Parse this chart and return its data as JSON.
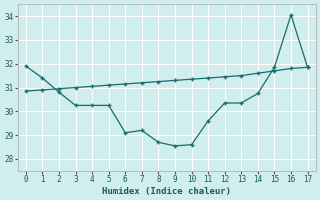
{
  "title": "",
  "xlabel": "Humidex (Indice chaleur)",
  "ylabel": "",
  "background_color": "#cfeeed",
  "grid_color": "#b8dede",
  "line_color": "#1a6b6b",
  "marker_color": "#1a6b6b",
  "xlim": [
    -0.5,
    17.5
  ],
  "ylim": [
    27.5,
    34.5
  ],
  "yticks": [
    28,
    29,
    30,
    31,
    32,
    33,
    34
  ],
  "xticks": [
    0,
    1,
    2,
    3,
    4,
    5,
    6,
    7,
    8,
    9,
    10,
    11,
    12,
    13,
    14,
    15,
    16,
    17
  ],
  "jagged_x": [
    0,
    1,
    2,
    3,
    4,
    5,
    6,
    7,
    8,
    9,
    10,
    11,
    12,
    13,
    14,
    15,
    16,
    17
  ],
  "jagged_y": [
    31.9,
    31.4,
    30.8,
    30.25,
    30.25,
    30.25,
    29.1,
    29.2,
    28.7,
    28.55,
    28.6,
    29.6,
    30.35,
    30.35,
    30.75,
    31.85,
    34.05,
    31.85
  ],
  "trend_x": [
    0,
    1,
    2,
    3,
    4,
    5,
    6,
    7,
    8,
    9,
    10,
    11,
    12,
    13,
    14,
    15,
    16,
    17
  ],
  "trend_y": [
    30.85,
    30.9,
    30.95,
    31.0,
    31.05,
    31.1,
    31.15,
    31.2,
    31.25,
    31.3,
    31.35,
    31.4,
    31.45,
    31.5,
    31.6,
    31.7,
    31.8,
    31.85
  ]
}
